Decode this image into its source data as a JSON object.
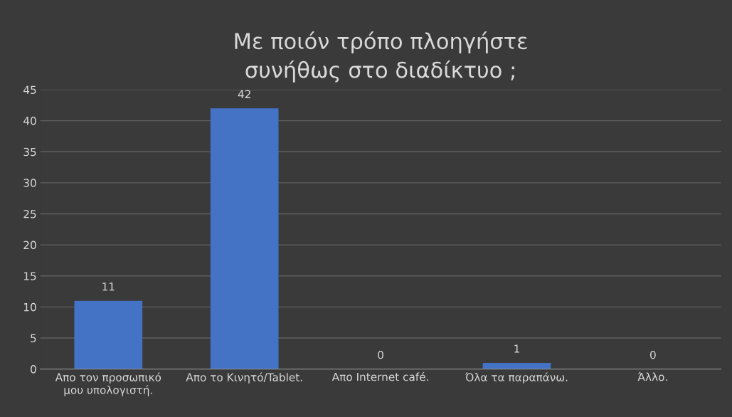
{
  "chart_data": {
    "type": "bar",
    "title": "Με ποιόν τρόπο πλοηγήστε συνήθως στο διαδίκτυο ;",
    "categories": [
      "Απο τον προσωπικό μου υπολογιστή.",
      "Απο το Κινητό/Tablet.",
      "Απο Internet café.",
      "Όλα τα παραπάνω.",
      "Άλλο."
    ],
    "values": [
      11,
      42,
      0,
      1,
      0
    ],
    "color": "#4472c4",
    "ylim": [
      0,
      45
    ],
    "yticks": [
      0,
      5,
      10,
      15,
      20,
      25,
      30,
      35,
      40,
      45
    ],
    "grid": "y",
    "data_labels": true,
    "legend": false
  }
}
